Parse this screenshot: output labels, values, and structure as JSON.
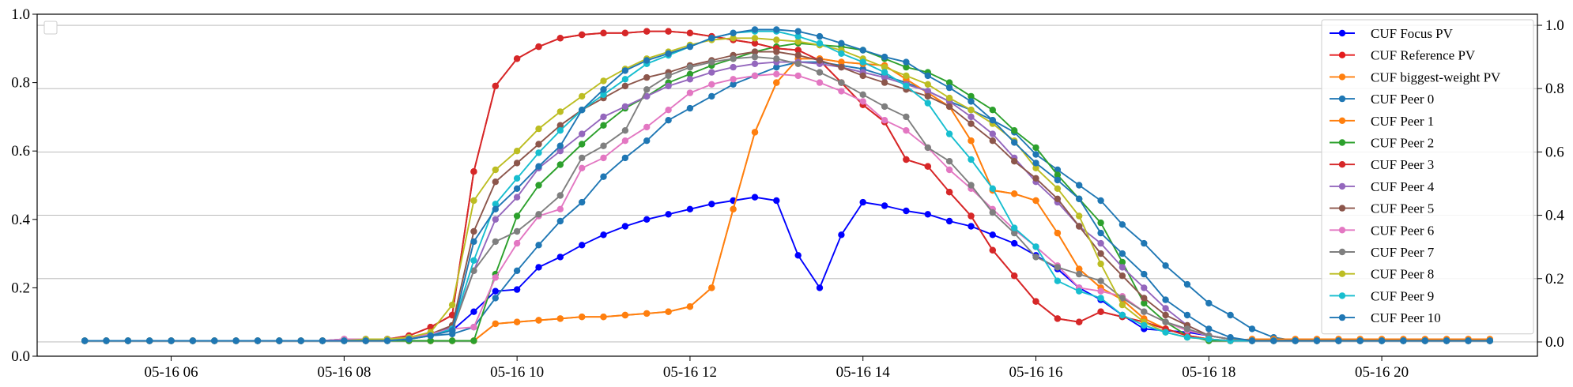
{
  "chart_data": {
    "type": "line",
    "title": "",
    "xlabel": "",
    "ylabel": "",
    "x_ticks": [
      "05-16 06",
      "05-16 08",
      "05-16 10",
      "05-16 12",
      "05-16 14",
      "05-16 16",
      "05-16 18",
      "05-16 20"
    ],
    "x_tick_hours": [
      6,
      8,
      10,
      12,
      14,
      16,
      18,
      20
    ],
    "xlim_hours": [
      4.45,
      21.8
    ],
    "ylim": [
      0,
      1
    ],
    "y_ticks": [
      "0.0",
      "0.2",
      "0.4",
      "0.6",
      "0.8",
      "1.0"
    ],
    "y2lim": [
      -0.045,
      1.035
    ],
    "y2_ticks": [
      "0.0",
      "0.2",
      "0.4",
      "0.6",
      "0.8",
      "1.0"
    ],
    "grid": "horizontal",
    "x_start_hour": 5.0,
    "x_step_hours": 0.25,
    "legend_position": "top-right",
    "empty_legend_position": "top-left",
    "series": [
      {
        "name": "CUF Focus PV",
        "color": "#0000ff",
        "values": [
          0.045,
          0.045,
          0.045,
          0.045,
          0.045,
          0.045,
          0.045,
          0.045,
          0.045,
          0.045,
          0.045,
          0.045,
          0.045,
          0.045,
          0.05,
          0.055,
          0.065,
          0.075,
          0.13,
          0.19,
          0.195,
          0.26,
          0.29,
          0.325,
          0.355,
          0.38,
          0.4,
          0.415,
          0.43,
          0.445,
          0.455,
          0.465,
          0.455,
          0.295,
          0.2,
          0.355,
          0.45,
          0.44,
          0.425,
          0.415,
          0.395,
          0.38,
          0.355,
          0.33,
          0.295,
          0.255,
          0.2,
          0.165,
          0.12,
          0.08,
          0.075,
          0.07,
          0.06,
          0.05,
          0.045,
          0.045,
          0.045,
          0.045,
          0.045,
          0.045,
          0.045,
          0.045,
          0.045,
          0.045,
          0.045,
          0.045
        ]
      },
      {
        "name": "CUF Reference PV",
        "color": "#e41a1c",
        "values": [
          0.045,
          0.045,
          0.045,
          0.045,
          0.045,
          0.045,
          0.045,
          0.045,
          0.045,
          0.045,
          0.045,
          0.045,
          0.045,
          0.045,
          0.05,
          0.06,
          0.085,
          0.12,
          0.54,
          0.79,
          0.87,
          0.905,
          0.93,
          0.94,
          0.945,
          0.945,
          0.95,
          0.95,
          0.945,
          0.935,
          0.925,
          0.915,
          0.9,
          0.895,
          0.865,
          0.8,
          0.735,
          0.685,
          0.575,
          0.555,
          0.48,
          0.41,
          0.31,
          0.235,
          0.16,
          0.11,
          0.1,
          0.13,
          0.115,
          0.1,
          0.08,
          0.06,
          0.05,
          0.045,
          0.045,
          0.045,
          0.045,
          0.045,
          0.045,
          0.045,
          0.045,
          0.045,
          0.045,
          0.045,
          0.045,
          0.045
        ]
      },
      {
        "name": "CUF biggest-weight PV",
        "color": "#ff7f0e",
        "values": [
          0.045,
          0.045,
          0.045,
          0.045,
          0.045,
          0.045,
          0.045,
          0.045,
          0.045,
          0.045,
          0.045,
          0.045,
          0.045,
          0.045,
          0.045,
          0.045,
          0.045,
          0.045,
          0.045,
          0.095,
          0.1,
          0.105,
          0.11,
          0.115,
          0.115,
          0.12,
          0.125,
          0.13,
          0.145,
          0.2,
          0.43,
          0.655,
          0.8,
          0.87,
          0.87,
          0.86,
          0.855,
          0.85,
          0.81,
          0.77,
          0.73,
          0.63,
          0.485,
          0.475,
          0.455,
          0.36,
          0.255,
          0.2,
          0.165,
          0.11,
          0.08,
          0.06,
          0.05,
          0.045,
          0.05,
          0.05,
          0.05,
          0.05,
          0.05,
          0.05,
          0.05,
          0.05,
          0.05,
          0.05,
          0.05,
          0.05
        ]
      },
      {
        "name": "CUF Peer 0",
        "color": "#1f77b4",
        "values": [
          0.045,
          0.045,
          0.045,
          0.045,
          0.045,
          0.045,
          0.045,
          0.045,
          0.045,
          0.045,
          0.045,
          0.045,
          0.045,
          0.05,
          0.05,
          0.055,
          0.06,
          0.065,
          0.085,
          0.17,
          0.25,
          0.325,
          0.395,
          0.45,
          0.525,
          0.58,
          0.63,
          0.69,
          0.725,
          0.76,
          0.795,
          0.82,
          0.845,
          0.86,
          0.86,
          0.85,
          0.84,
          0.82,
          0.8,
          0.775,
          0.745,
          0.72,
          0.69,
          0.655,
          0.59,
          0.545,
          0.5,
          0.455,
          0.385,
          0.33,
          0.265,
          0.21,
          0.155,
          0.12,
          0.08,
          0.055,
          0.045,
          0.045,
          0.045,
          0.045,
          0.045,
          0.045,
          0.045,
          0.045,
          0.045,
          0.045
        ]
      },
      {
        "name": "CUF Peer 1",
        "color": "#ff7f0e",
        "values": [
          0.045,
          0.045,
          0.045,
          0.045,
          0.045,
          0.045,
          0.045,
          0.045,
          0.045,
          0.045,
          0.045,
          0.045,
          0.045,
          0.045,
          0.045,
          0.045,
          0.045,
          0.045,
          0.045,
          0.095,
          0.1,
          0.105,
          0.11,
          0.115,
          0.115,
          0.12,
          0.125,
          0.13,
          0.145,
          0.2,
          0.43,
          0.655,
          0.8,
          0.87,
          0.87,
          0.86,
          0.855,
          0.85,
          0.81,
          0.77,
          0.73,
          0.63,
          0.485,
          0.475,
          0.455,
          0.36,
          0.255,
          0.2,
          0.165,
          0.11,
          0.08,
          0.06,
          0.05,
          0.045,
          0.05,
          0.05,
          0.05,
          0.05,
          0.05,
          0.05,
          0.05,
          0.05,
          0.05,
          0.05,
          0.05,
          0.05
        ]
      },
      {
        "name": "CUF Peer 2",
        "color": "#2ca02c",
        "values": [
          0.045,
          0.045,
          0.045,
          0.045,
          0.045,
          0.045,
          0.045,
          0.045,
          0.045,
          0.045,
          0.045,
          0.045,
          0.045,
          0.045,
          0.045,
          0.045,
          0.045,
          0.045,
          0.045,
          0.24,
          0.41,
          0.5,
          0.56,
          0.62,
          0.675,
          0.725,
          0.76,
          0.8,
          0.825,
          0.85,
          0.87,
          0.89,
          0.905,
          0.915,
          0.91,
          0.905,
          0.895,
          0.87,
          0.845,
          0.83,
          0.8,
          0.76,
          0.72,
          0.66,
          0.61,
          0.53,
          0.46,
          0.39,
          0.275,
          0.155,
          0.1,
          0.06,
          0.045,
          0.045,
          0.045,
          0.045,
          0.045,
          0.045,
          0.045,
          0.045,
          0.045,
          0.045,
          0.045,
          0.045,
          0.045,
          0.045
        ]
      },
      {
        "name": "CUF Peer 3",
        "color": "#d62728",
        "values": [
          0.045,
          0.045,
          0.045,
          0.045,
          0.045,
          0.045,
          0.045,
          0.045,
          0.045,
          0.045,
          0.045,
          0.045,
          0.045,
          0.045,
          0.05,
          0.06,
          0.085,
          0.12,
          0.54,
          0.79,
          0.87,
          0.905,
          0.93,
          0.94,
          0.945,
          0.945,
          0.95,
          0.95,
          0.945,
          0.935,
          0.925,
          0.915,
          0.9,
          0.895,
          0.865,
          0.8,
          0.735,
          0.685,
          0.575,
          0.555,
          0.48,
          0.41,
          0.31,
          0.235,
          0.16,
          0.11,
          0.1,
          0.13,
          0.115,
          0.1,
          0.08,
          0.06,
          0.05,
          0.045,
          0.045,
          0.045,
          0.045,
          0.045,
          0.045,
          0.045,
          0.045,
          0.045,
          0.045,
          0.045,
          0.045,
          0.045
        ]
      },
      {
        "name": "CUF Peer 4",
        "color": "#9467bd",
        "values": [
          0.045,
          0.045,
          0.045,
          0.045,
          0.045,
          0.045,
          0.045,
          0.045,
          0.045,
          0.045,
          0.045,
          0.045,
          0.05,
          0.05,
          0.05,
          0.055,
          0.065,
          0.085,
          0.25,
          0.4,
          0.465,
          0.55,
          0.6,
          0.65,
          0.7,
          0.73,
          0.76,
          0.79,
          0.81,
          0.83,
          0.845,
          0.855,
          0.86,
          0.86,
          0.855,
          0.845,
          0.83,
          0.815,
          0.795,
          0.775,
          0.745,
          0.7,
          0.65,
          0.58,
          0.51,
          0.45,
          0.38,
          0.33,
          0.26,
          0.2,
          0.14,
          0.09,
          0.06,
          0.05,
          0.045,
          0.045,
          0.045,
          0.045,
          0.045,
          0.045,
          0.045,
          0.045,
          0.045,
          0.045,
          0.045,
          0.045
        ]
      },
      {
        "name": "CUF Peer 5",
        "color": "#8c564b",
        "values": [
          0.045,
          0.045,
          0.045,
          0.045,
          0.045,
          0.045,
          0.045,
          0.045,
          0.045,
          0.045,
          0.045,
          0.045,
          0.05,
          0.05,
          0.05,
          0.055,
          0.065,
          0.09,
          0.365,
          0.51,
          0.565,
          0.62,
          0.675,
          0.72,
          0.755,
          0.79,
          0.815,
          0.83,
          0.85,
          0.865,
          0.88,
          0.89,
          0.89,
          0.88,
          0.865,
          0.845,
          0.82,
          0.8,
          0.78,
          0.76,
          0.73,
          0.68,
          0.63,
          0.57,
          0.52,
          0.46,
          0.38,
          0.3,
          0.235,
          0.17,
          0.12,
          0.09,
          0.06,
          0.05,
          0.045,
          0.045,
          0.045,
          0.045,
          0.045,
          0.045,
          0.045,
          0.045,
          0.045,
          0.045,
          0.045,
          0.045
        ]
      },
      {
        "name": "CUF Peer 6",
        "color": "#e377c2",
        "values": [
          0.045,
          0.045,
          0.045,
          0.045,
          0.045,
          0.045,
          0.045,
          0.045,
          0.045,
          0.045,
          0.045,
          0.045,
          0.05,
          0.05,
          0.05,
          0.055,
          0.065,
          0.08,
          0.085,
          0.23,
          0.33,
          0.41,
          0.43,
          0.55,
          0.58,
          0.63,
          0.67,
          0.72,
          0.77,
          0.795,
          0.81,
          0.82,
          0.825,
          0.82,
          0.8,
          0.775,
          0.745,
          0.69,
          0.66,
          0.61,
          0.545,
          0.49,
          0.43,
          0.37,
          0.32,
          0.265,
          0.2,
          0.19,
          0.175,
          0.13,
          0.1,
          0.075,
          0.06,
          0.05,
          0.045,
          0.045,
          0.045,
          0.045,
          0.045,
          0.045,
          0.045,
          0.045,
          0.045,
          0.045,
          0.045,
          0.045
        ]
      },
      {
        "name": "CUF Peer 7",
        "color": "#7f7f7f",
        "values": [
          0.045,
          0.045,
          0.045,
          0.045,
          0.045,
          0.045,
          0.045,
          0.045,
          0.045,
          0.045,
          0.045,
          0.045,
          0.045,
          0.045,
          0.045,
          0.05,
          0.06,
          0.075,
          0.25,
          0.335,
          0.365,
          0.415,
          0.47,
          0.58,
          0.615,
          0.66,
          0.78,
          0.82,
          0.845,
          0.86,
          0.87,
          0.875,
          0.87,
          0.855,
          0.83,
          0.8,
          0.765,
          0.73,
          0.7,
          0.61,
          0.57,
          0.5,
          0.42,
          0.36,
          0.29,
          0.26,
          0.24,
          0.22,
          0.17,
          0.13,
          0.1,
          0.08,
          0.06,
          0.05,
          0.045,
          0.045,
          0.045,
          0.045,
          0.045,
          0.045,
          0.045,
          0.045,
          0.045,
          0.045,
          0.045,
          0.045
        ]
      },
      {
        "name": "CUF Peer 8",
        "color": "#bcbd22",
        "values": [
          0.045,
          0.045,
          0.045,
          0.045,
          0.045,
          0.045,
          0.045,
          0.045,
          0.045,
          0.045,
          0.045,
          0.045,
          0.045,
          0.05,
          0.05,
          0.055,
          0.07,
          0.15,
          0.455,
          0.545,
          0.6,
          0.665,
          0.715,
          0.76,
          0.805,
          0.84,
          0.87,
          0.89,
          0.91,
          0.925,
          0.93,
          0.93,
          0.925,
          0.92,
          0.91,
          0.895,
          0.87,
          0.845,
          0.82,
          0.795,
          0.755,
          0.72,
          0.68,
          0.63,
          0.55,
          0.49,
          0.41,
          0.27,
          0.15,
          0.1,
          0.07,
          0.055,
          0.05,
          0.045,
          0.045,
          0.045,
          0.045,
          0.045,
          0.045,
          0.045,
          0.045,
          0.045,
          0.045,
          0.045,
          0.045,
          0.045
        ]
      },
      {
        "name": "CUF Peer 9",
        "color": "#17becf",
        "values": [
          0.045,
          0.045,
          0.045,
          0.045,
          0.045,
          0.045,
          0.045,
          0.045,
          0.045,
          0.045,
          0.045,
          0.045,
          0.045,
          0.045,
          0.045,
          0.05,
          0.06,
          0.08,
          0.28,
          0.445,
          0.52,
          0.595,
          0.66,
          0.72,
          0.765,
          0.81,
          0.855,
          0.88,
          0.905,
          0.93,
          0.945,
          0.95,
          0.95,
          0.935,
          0.915,
          0.885,
          0.86,
          0.83,
          0.79,
          0.74,
          0.65,
          0.575,
          0.49,
          0.375,
          0.32,
          0.22,
          0.19,
          0.17,
          0.12,
          0.09,
          0.07,
          0.055,
          0.05,
          0.045,
          0.045,
          0.045,
          0.045,
          0.045,
          0.045,
          0.045,
          0.045,
          0.045,
          0.045,
          0.045,
          0.045,
          0.045
        ]
      },
      {
        "name": "CUF Peer 10",
        "color": "#1f77b4",
        "values": [
          0.045,
          0.045,
          0.045,
          0.045,
          0.045,
          0.045,
          0.045,
          0.045,
          0.045,
          0.045,
          0.045,
          0.045,
          0.045,
          0.045,
          0.045,
          0.05,
          0.06,
          0.075,
          0.335,
          0.43,
          0.49,
          0.555,
          0.615,
          0.72,
          0.78,
          0.835,
          0.865,
          0.885,
          0.905,
          0.93,
          0.945,
          0.955,
          0.955,
          0.95,
          0.935,
          0.915,
          0.895,
          0.875,
          0.86,
          0.82,
          0.785,
          0.745,
          0.69,
          0.625,
          0.565,
          0.515,
          0.46,
          0.36,
          0.3,
          0.24,
          0.165,
          0.12,
          0.08,
          0.055,
          0.045,
          0.045,
          0.045,
          0.045,
          0.045,
          0.045,
          0.045,
          0.045,
          0.045,
          0.045,
          0.045,
          0.045
        ]
      }
    ]
  }
}
